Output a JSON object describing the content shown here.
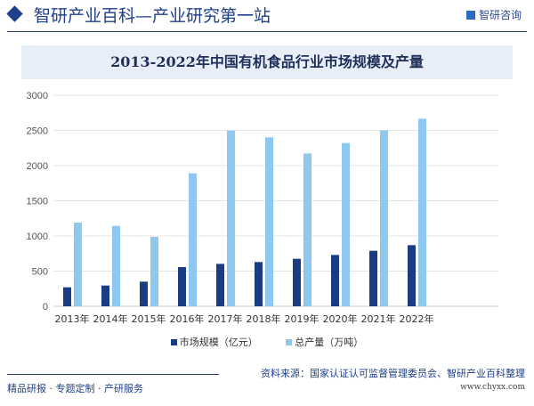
{
  "header": {
    "title": "智研产业百科—产业研究第一站",
    "brand": "智研咨询"
  },
  "chart_data": {
    "type": "bar",
    "title": "2013-2022年中国有机食品行业市场规模及产量",
    "categories": [
      "2013年",
      "2014年",
      "2015年",
      "2016年",
      "2017年",
      "2018年",
      "2019年",
      "2020年",
      "2021年",
      "2022年"
    ],
    "series": [
      {
        "name": "市场规模（亿元）",
        "color": "#1a3c84",
        "values": [
          270,
          295,
          350,
          557,
          603,
          629,
          675,
          730,
          789,
          869
        ]
      },
      {
        "name": "总产量（万吨）",
        "color": "#8ec8ee",
        "values": [
          1190,
          1143,
          987,
          1890,
          2498,
          2401,
          2173,
          2321,
          2500,
          2667
        ]
      }
    ],
    "yticks": [
      "0",
      "500",
      "1000",
      "1500",
      "2000",
      "2500",
      "3000"
    ],
    "ylim": [
      0,
      3000
    ],
    "grid": true,
    "legend": "bottom"
  },
  "footer": {
    "left": "精品研报 · 专题定制 · 产研服务",
    "source": "资料来源：国家认证认可监督管理委员会、智研产业百科整理",
    "url": "www.chyxx.com"
  }
}
